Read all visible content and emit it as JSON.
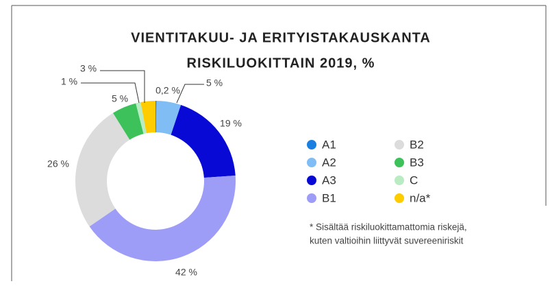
{
  "chart_data": {
    "type": "donut",
    "title": [
      "VIENTITAKUU- JA ERITYISTAKAUSKANTA",
      "RISKILUOKITTAIN 2019, %"
    ],
    "categories": [
      "A1",
      "A2",
      "A3",
      "B1",
      "B2",
      "B3",
      "C",
      "n/a*"
    ],
    "values": [
      0.2,
      5,
      19,
      42,
      26,
      5,
      1,
      3
    ],
    "value_labels": [
      "0,2 %",
      "5 %",
      "19 %",
      "42 %",
      "26 %",
      "5 %",
      "1 %",
      "3 %"
    ],
    "colors": [
      "#1a7fe0",
      "#80bdf5",
      "#0909d6",
      "#9d9df7",
      "#dcdcdc",
      "#3dc25b",
      "#b9ecc2",
      "#ffcc00"
    ],
    "note": [
      "* Sisältää riskiluokittamattomia riskejä,",
      "kuten valtioihin liittyvät suvereeniriskit"
    ]
  }
}
